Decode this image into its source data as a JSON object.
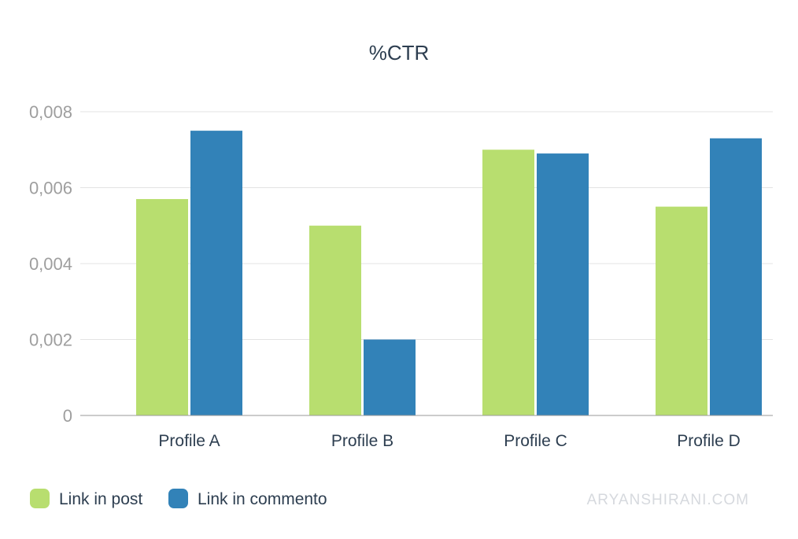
{
  "chart_data": {
    "type": "bar",
    "title": "%CTR",
    "categories": [
      "Profile A",
      "Profile B",
      "Profile C",
      "Profile D"
    ],
    "series": [
      {
        "name": "Link in post",
        "color": "#b8de6f",
        "values": [
          0.0057,
          0.005,
          0.007,
          0.0055
        ]
      },
      {
        "name": "Link in commento",
        "color": "#3282b8",
        "values": [
          0.0075,
          0.002,
          0.0069,
          0.0073
        ]
      }
    ],
    "ylim": [
      0,
      0.008
    ],
    "yticks": [
      0,
      0.002,
      0.004,
      0.006,
      0.008
    ],
    "ytick_labels": [
      "0",
      "0,002",
      "0,004",
      "0,006",
      "0,008"
    ],
    "grid": true,
    "legend_position": "bottom-left"
  },
  "watermark": "ARYANSHIRANI.COM"
}
